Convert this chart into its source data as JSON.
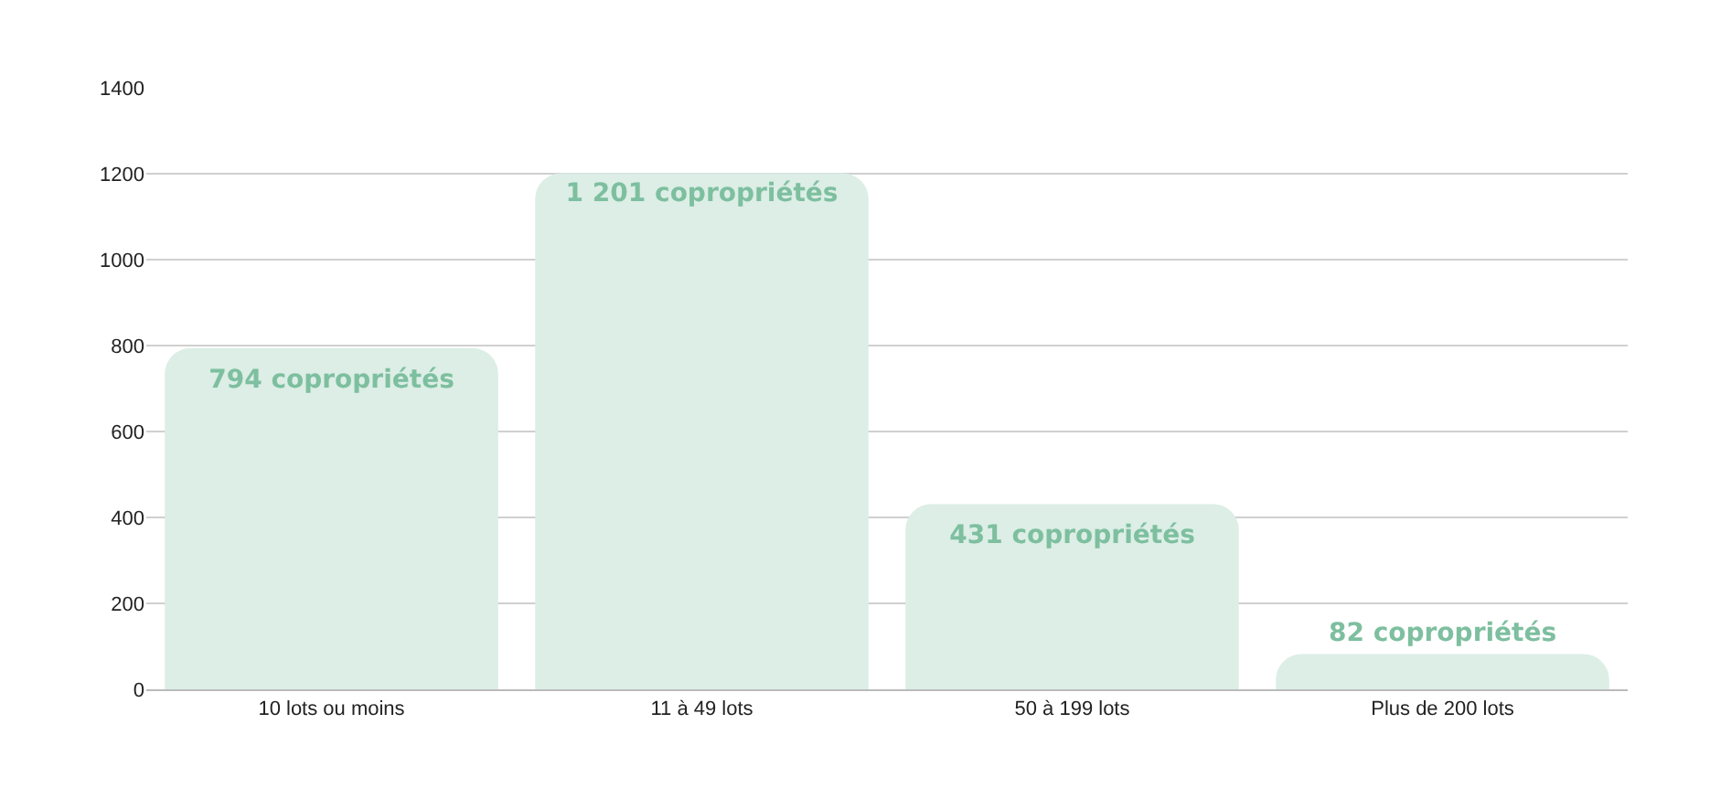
{
  "chart_data": {
    "type": "bar",
    "categories": [
      "10 lots ou moins",
      "11 à 49 lots",
      "50 à 199 lots",
      "Plus de 200 lots"
    ],
    "values": [
      794,
      1201,
      431,
      82
    ],
    "value_labels": [
      "794 copropriétés",
      "1 201 copropriétés",
      "431 copropriétés",
      "82 copropriétés"
    ],
    "color": "#dceee6",
    "ylim": [
      0,
      1400
    ],
    "yticks": [
      0,
      200,
      400,
      600,
      800,
      1000,
      1200,
      1400
    ],
    "grid": "y"
  }
}
